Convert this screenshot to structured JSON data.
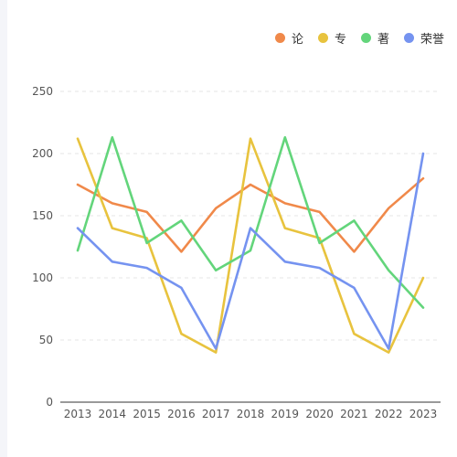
{
  "legend": [
    {
      "label": "论",
      "color": "#f0894a"
    },
    {
      "label": "专",
      "color": "#e8c33e"
    },
    {
      "label": "著",
      "color": "#63d57b"
    },
    {
      "label": "荣誉",
      "color": "#7593f0"
    }
  ],
  "chart_data": {
    "type": "line",
    "title": "",
    "xlabel": "",
    "ylabel": "",
    "x": [
      "2013",
      "2014",
      "2015",
      "2016",
      "2017",
      "2018",
      "2019",
      "2020",
      "2021",
      "2022",
      "2023"
    ],
    "ylim": [
      0,
      250
    ],
    "yticks": [
      0,
      50,
      100,
      150,
      200,
      250
    ],
    "grid": true,
    "legend_position": "top-right",
    "series": [
      {
        "name": "论",
        "color": "#f0894a",
        "values": [
          175,
          160,
          153,
          121,
          156,
          175,
          160,
          153,
          121,
          156,
          180
        ]
      },
      {
        "name": "专",
        "color": "#e8c33e",
        "values": [
          212,
          140,
          132,
          55,
          40,
          212,
          140,
          132,
          55,
          40,
          100
        ]
      },
      {
        "name": "著",
        "color": "#63d57b",
        "values": [
          122,
          213,
          128,
          146,
          106,
          122,
          213,
          128,
          146,
          106,
          76
        ]
      },
      {
        "name": "荣誉",
        "color": "#7593f0",
        "values": [
          140,
          113,
          108,
          92,
          43,
          140,
          113,
          108,
          92,
          43,
          200
        ]
      }
    ]
  }
}
